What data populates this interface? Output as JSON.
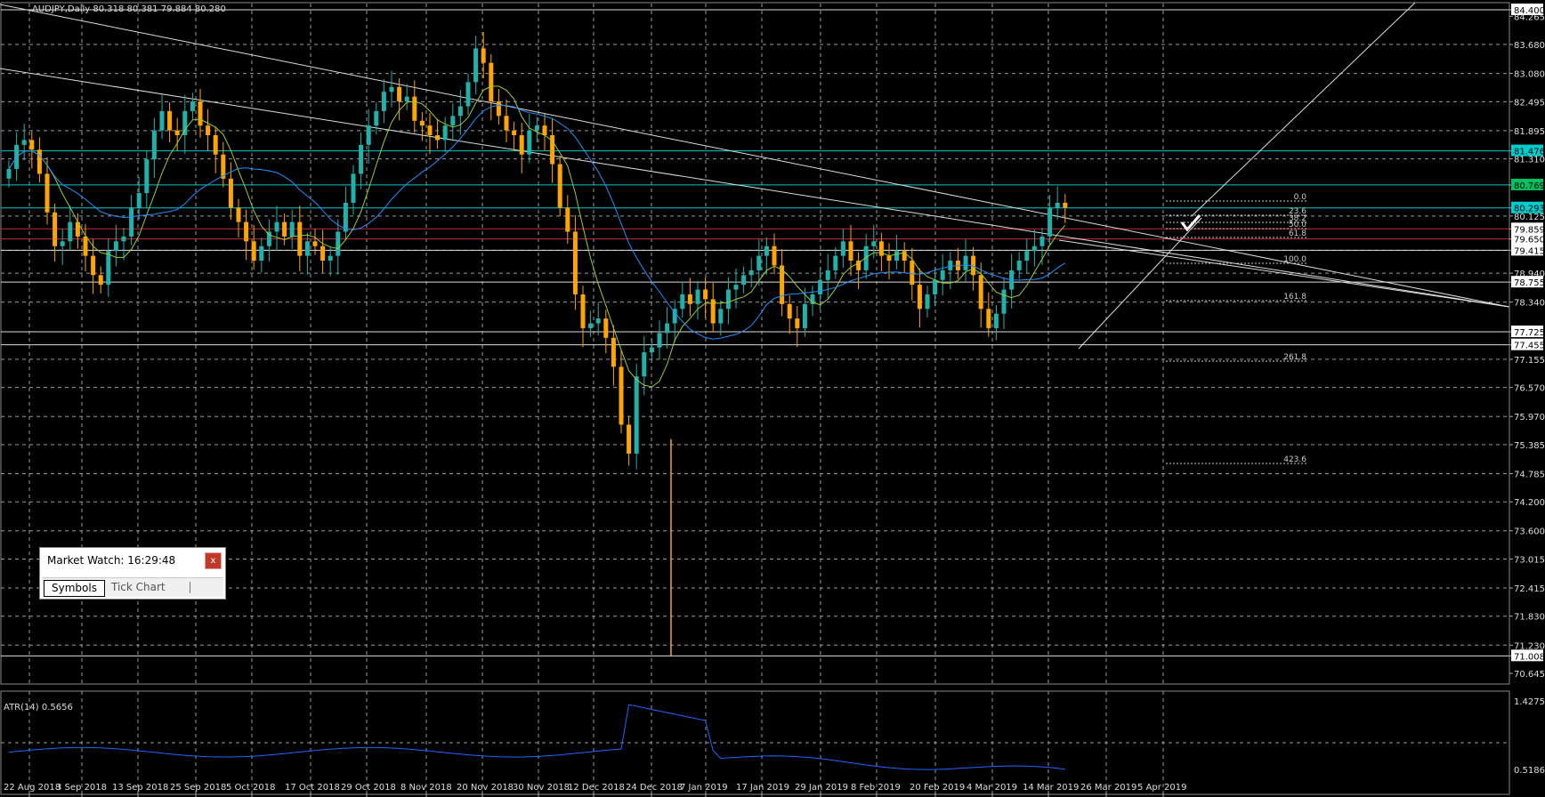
{
  "symbol_title": "AUDJPY,Daily  80.318 80.381 79.884 80.280",
  "price_axis_labels": [
    "84.400",
    "84.265",
    "83.680",
    "83.080",
    "82.495",
    "81.895",
    "81.476",
    "81.310",
    "80.769",
    "80.293",
    "80.125",
    "79.859",
    "79.650",
    "79.415",
    "78.940",
    "78.755",
    "78.340",
    "77.725",
    "77.455",
    "77.155",
    "76.570",
    "75.970",
    "75.385",
    "74.785",
    "74.200",
    "73.600",
    "73.015",
    "72.415",
    "71.830",
    "71.230",
    "71.008",
    "70.645"
  ],
  "highlighted_prices": {
    "cyan_level_1": "81.476",
    "green_level": "80.769",
    "cyan_level_2": "80.293"
  },
  "date_labels": [
    "22 Aug 2018",
    "3 Sep 2018",
    "13 Sep 2018",
    "25 Sep 2018",
    "5 Oct 2018",
    "17 Oct 2018",
    "29 Oct 2018",
    "8 Nov 2018",
    "20 Nov 2018",
    "30 Nov 2018",
    "12 Dec 2018",
    "24 Dec 2018",
    "7 Jan 2019",
    "17 Jan 2019",
    "29 Jan 2019",
    "8 Feb 2019",
    "20 Feb 2019",
    "4 Mar 2019",
    "14 Mar 2019",
    "26 Mar 2019",
    "5 Apr 2019"
  ],
  "fib_levels": [
    "0.0",
    "23.6",
    "38.2",
    "50.0",
    "61.8",
    "100.0",
    "161.8",
    "261.8",
    "423.6"
  ],
  "indicator": {
    "label": "ATR(14) 0.5656",
    "axis_labels": [
      "1.4275",
      "0.5186"
    ]
  },
  "market_watch": {
    "title": "Market Watch: 16:29:48",
    "close_label": "x",
    "tabs": [
      "Symbols",
      "Tick Chart"
    ]
  },
  "colors": {
    "background": "#000000",
    "bull": "#20b2aa",
    "bear": "#ffa500",
    "grid": "#9a9a9a",
    "cyan_line": "#00cccc",
    "green_label": "#00c060",
    "red_line": "#c03030",
    "ma_fast": "#9acd32",
    "ma_slow": "#1e90ff",
    "atr_line": "#1e64ff"
  }
}
